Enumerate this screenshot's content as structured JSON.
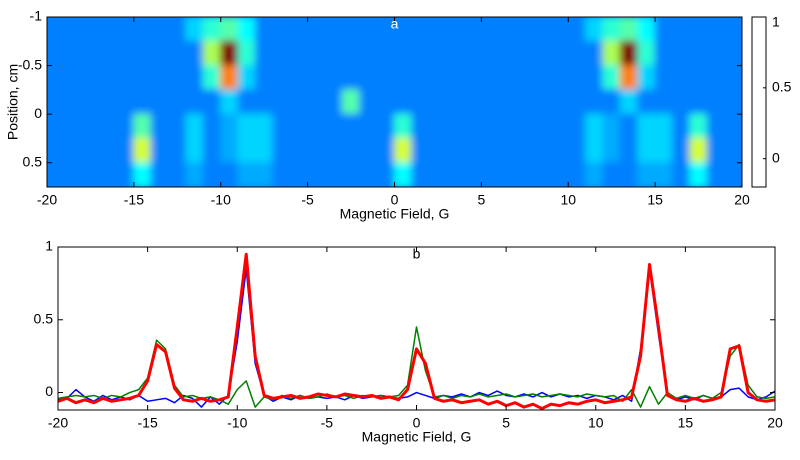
{
  "chart_data": [
    {
      "type": "heatmap",
      "title": "a",
      "xlabel": "Magnetic Field, G",
      "ylabel": "Position, cm",
      "colormap": "jet",
      "x": [
        -19.5,
        -18.5,
        -17.5,
        -16.5,
        -15.5,
        -14.5,
        -13.5,
        -12.5,
        -11.5,
        -10.5,
        -9.5,
        -8.5,
        -7.5,
        -6.5,
        -5.5,
        -4.5,
        -3.5,
        -2.5,
        -1.5,
        -0.5,
        0.5,
        1.5,
        2.5,
        3.5,
        4.5,
        5.5,
        6.5,
        7.5,
        8.5,
        9.5,
        10.5,
        11.5,
        12.5,
        13.5,
        14.5,
        15.5,
        16.5,
        17.5,
        18.5,
        19.5
      ],
      "y": [
        -0.875,
        -0.625,
        -0.375,
        -0.125,
        0.125,
        0.375,
        0.625
      ],
      "z": [
        [
          0.1,
          0.1,
          0.1,
          0.1,
          0.1,
          0.1,
          0.1,
          0.1,
          0.2,
          0.3,
          0.35,
          0.25,
          0.1,
          0.1,
          0.1,
          0.1,
          0.1,
          0.1,
          0.1,
          0.1,
          0.1,
          0.1,
          0.1,
          0.1,
          0.1,
          0.1,
          0.1,
          0.1,
          0.1,
          0.1,
          0.1,
          0.2,
          0.3,
          0.35,
          0.25,
          0.1,
          0.1,
          0.1,
          0.1,
          0.1
        ],
        [
          0.1,
          0.1,
          0.1,
          0.1,
          0.1,
          0.1,
          0.1,
          0.1,
          0.1,
          0.45,
          1,
          0.3,
          0.1,
          0.1,
          0.1,
          0.1,
          0.1,
          0.1,
          0.1,
          0.1,
          0.1,
          0.1,
          0.1,
          0.1,
          0.1,
          0.1,
          0.1,
          0.1,
          0.1,
          0.1,
          0.1,
          0.1,
          0.45,
          1,
          0.3,
          0.1,
          0.1,
          0.1,
          0.1,
          0.1
        ],
        [
          0.1,
          0.1,
          0.1,
          0.1,
          0.1,
          0.1,
          0.1,
          0.1,
          0.1,
          0.3,
          0.7,
          0.2,
          0.1,
          0.1,
          0.1,
          0.1,
          0.1,
          0.1,
          0.1,
          0.1,
          0.1,
          0.1,
          0.1,
          0.1,
          0.1,
          0.1,
          0.1,
          0.1,
          0.1,
          0.1,
          0.1,
          0.1,
          0.3,
          0.7,
          0.2,
          0.1,
          0.1,
          0.1,
          0.1,
          0.1
        ],
        [
          0.1,
          0.1,
          0.1,
          0.1,
          0.1,
          0.1,
          0.1,
          0.1,
          0.1,
          0.1,
          0.2,
          0.1,
          0.1,
          0.1,
          0.1,
          0.1,
          0.1,
          0.35,
          0.1,
          0.1,
          0.1,
          0.1,
          0.1,
          0.1,
          0.1,
          0.1,
          0.1,
          0.1,
          0.1,
          0.1,
          0.1,
          0.1,
          0.1,
          0.2,
          0.1,
          0.1,
          0.1,
          0.1,
          0.1,
          0.1
        ],
        [
          0.1,
          0.1,
          0.1,
          0.1,
          0.1,
          0.35,
          0.1,
          0.1,
          0.2,
          0.1,
          0.15,
          0.2,
          0.2,
          0.1,
          0.1,
          0.1,
          0.1,
          0.1,
          0.1,
          0.1,
          0.3,
          0.1,
          0.1,
          0.1,
          0.1,
          0.1,
          0.1,
          0.1,
          0.1,
          0.1,
          0.1,
          0.2,
          0.15,
          0.1,
          0.2,
          0.2,
          0.1,
          0.3,
          0.1,
          0.1
        ],
        [
          0.1,
          0.1,
          0.1,
          0.1,
          0.1,
          0.5,
          0.1,
          0.1,
          0.2,
          0.1,
          0.15,
          0.2,
          0.2,
          0.1,
          0.1,
          0.1,
          0.1,
          0.1,
          0.1,
          0.1,
          0.5,
          0.1,
          0.1,
          0.1,
          0.1,
          0.1,
          0.1,
          0.1,
          0.1,
          0.1,
          0.1,
          0.2,
          0.15,
          0.1,
          0.2,
          0.2,
          0.1,
          0.5,
          0.1,
          0.1
        ],
        [
          0.1,
          0.1,
          0.1,
          0.1,
          0.1,
          0.25,
          0.1,
          0.1,
          0.15,
          0.1,
          0.1,
          0.15,
          0.15,
          0.1,
          0.1,
          0.1,
          0.1,
          0.1,
          0.1,
          0.1,
          0.25,
          0.1,
          0.1,
          0.1,
          0.1,
          0.1,
          0.1,
          0.1,
          0.1,
          0.1,
          0.1,
          0.15,
          0.1,
          0.1,
          0.15,
          0.15,
          0.1,
          0.25,
          0.1,
          0.1
        ]
      ],
      "xlim": [
        -20,
        20
      ],
      "xticks": [
        -20,
        -15,
        -10,
        -5,
        0,
        5,
        10,
        15,
        20
      ],
      "ylim": [
        -1,
        0.75
      ],
      "y_direction": "reverse",
      "yticks": [
        -1,
        -0.5,
        0,
        0.5
      ],
      "clim": [
        -0.2,
        1
      ],
      "cticks": [
        0,
        0.5,
        1
      ]
    },
    {
      "type": "line",
      "title": "b",
      "xlabel": "Magnetic Field, G",
      "x": [
        -20,
        -19.5,
        -19,
        -18.5,
        -18,
        -17.5,
        -17,
        -16.5,
        -16,
        -15.5,
        -15,
        -14.5,
        -14,
        -13.5,
        -13,
        -12.5,
        -12,
        -11.5,
        -11,
        -10.5,
        -10,
        -9.5,
        -9,
        -8.5,
        -8,
        -7.5,
        -7,
        -6.5,
        -6,
        -5.5,
        -5,
        -4.5,
        -4,
        -3.5,
        -3,
        -2.5,
        -2,
        -1.5,
        -1,
        -0.5,
        0,
        0.5,
        1,
        1.5,
        2,
        2.5,
        3,
        3.5,
        4,
        4.5,
        5,
        5.5,
        6,
        6.5,
        7,
        7.5,
        8,
        8.5,
        9,
        9.5,
        10,
        10.5,
        11,
        11.5,
        12,
        12.5,
        13,
        13.5,
        14,
        14.5,
        15,
        15.5,
        16,
        16.5,
        17,
        17.5,
        18,
        18.5,
        19,
        19.5,
        20
      ],
      "series": [
        {
          "color": "#0000ff",
          "linewidth": 1.5,
          "values": [
            -0.05,
            -0.04,
            0.02,
            -0.03,
            -0.06,
            -0.02,
            -0.05,
            -0.03,
            -0.05,
            -0.02,
            -0.06,
            -0.05,
            -0.04,
            -0.07,
            -0.02,
            -0.04,
            -0.1,
            -0.03,
            -0.08,
            -0.02,
            0.35,
            0.85,
            0.2,
            -0.02,
            -0.06,
            -0.03,
            -0.05,
            -0.02,
            -0.04,
            -0.03,
            -0.04,
            -0.03,
            -0.05,
            -0.02,
            -0.04,
            -0.03,
            -0.02,
            -0.03,
            -0.04,
            -0.03,
            0.0,
            -0.02,
            -0.04,
            -0.02,
            -0.03,
            -0.01,
            -0.03,
            0.0,
            -0.02,
            0.01,
            -0.02,
            -0.03,
            -0.01,
            -0.03,
            0.0,
            -0.03,
            -0.01,
            -0.03,
            -0.02,
            -0.04,
            -0.02,
            -0.03,
            -0.05,
            -0.02,
            -0.06,
            0.3,
            0.85,
            0.4,
            -0.02,
            -0.05,
            -0.03,
            -0.05,
            -0.02,
            -0.04,
            -0.03,
            0.02,
            0.03,
            -0.03,
            -0.05,
            -0.03,
            0.01
          ]
        },
        {
          "color": "#008000",
          "linewidth": 1.5,
          "values": [
            -0.04,
            -0.03,
            -0.02,
            -0.03,
            -0.02,
            -0.04,
            -0.02,
            -0.03,
            0.0,
            0.02,
            0.1,
            0.36,
            0.3,
            0.05,
            -0.03,
            -0.02,
            -0.04,
            -0.03,
            -0.05,
            -0.08,
            0.02,
            0.08,
            -0.1,
            -0.03,
            -0.05,
            -0.02,
            -0.04,
            -0.02,
            -0.04,
            -0.03,
            -0.01,
            -0.03,
            -0.02,
            -0.04,
            -0.02,
            -0.03,
            -0.02,
            -0.03,
            -0.02,
            0.05,
            0.45,
            0.15,
            -0.03,
            -0.02,
            -0.04,
            -0.02,
            -0.03,
            -0.01,
            -0.03,
            -0.02,
            -0.01,
            -0.03,
            -0.02,
            -0.01,
            -0.03,
            -0.02,
            -0.01,
            -0.02,
            -0.03,
            -0.01,
            -0.02,
            -0.03,
            -0.02,
            -0.06,
            0.02,
            -0.1,
            0.04,
            -0.08,
            0.0,
            -0.04,
            -0.02,
            -0.04,
            -0.02,
            -0.04,
            0.0,
            0.25,
            0.33,
            0.05,
            -0.03,
            -0.04,
            -0.03
          ]
        },
        {
          "color": "#ff0000",
          "linewidth": 3,
          "values": [
            -0.06,
            -0.04,
            -0.07,
            -0.05,
            -0.07,
            -0.04,
            -0.06,
            -0.05,
            -0.04,
            -0.02,
            0.08,
            0.33,
            0.28,
            0.03,
            -0.05,
            -0.06,
            -0.04,
            -0.06,
            -0.05,
            -0.03,
            0.45,
            0.95,
            0.25,
            -0.02,
            -0.04,
            -0.03,
            -0.02,
            -0.04,
            -0.03,
            -0.01,
            -0.02,
            -0.03,
            -0.01,
            -0.02,
            -0.03,
            -0.02,
            -0.04,
            -0.03,
            -0.05,
            0.02,
            0.3,
            0.2,
            -0.04,
            -0.06,
            -0.05,
            -0.07,
            -0.06,
            -0.05,
            -0.08,
            -0.06,
            -0.09,
            -0.07,
            -0.1,
            -0.08,
            -0.11,
            -0.08,
            -0.09,
            -0.07,
            -0.08,
            -0.06,
            -0.05,
            -0.07,
            -0.06,
            -0.05,
            -0.03,
            0.25,
            0.88,
            0.45,
            -0.02,
            -0.05,
            -0.06,
            -0.04,
            -0.06,
            -0.05,
            -0.03,
            0.3,
            0.32,
            0.0,
            -0.05,
            -0.06,
            -0.05
          ]
        }
      ],
      "xlim": [
        -20,
        20
      ],
      "xticks": [
        -20,
        -15,
        -10,
        -5,
        0,
        5,
        10,
        15,
        20
      ],
      "ylim": [
        -0.12,
        1
      ],
      "yticks": [
        0,
        0.5,
        1
      ]
    }
  ]
}
